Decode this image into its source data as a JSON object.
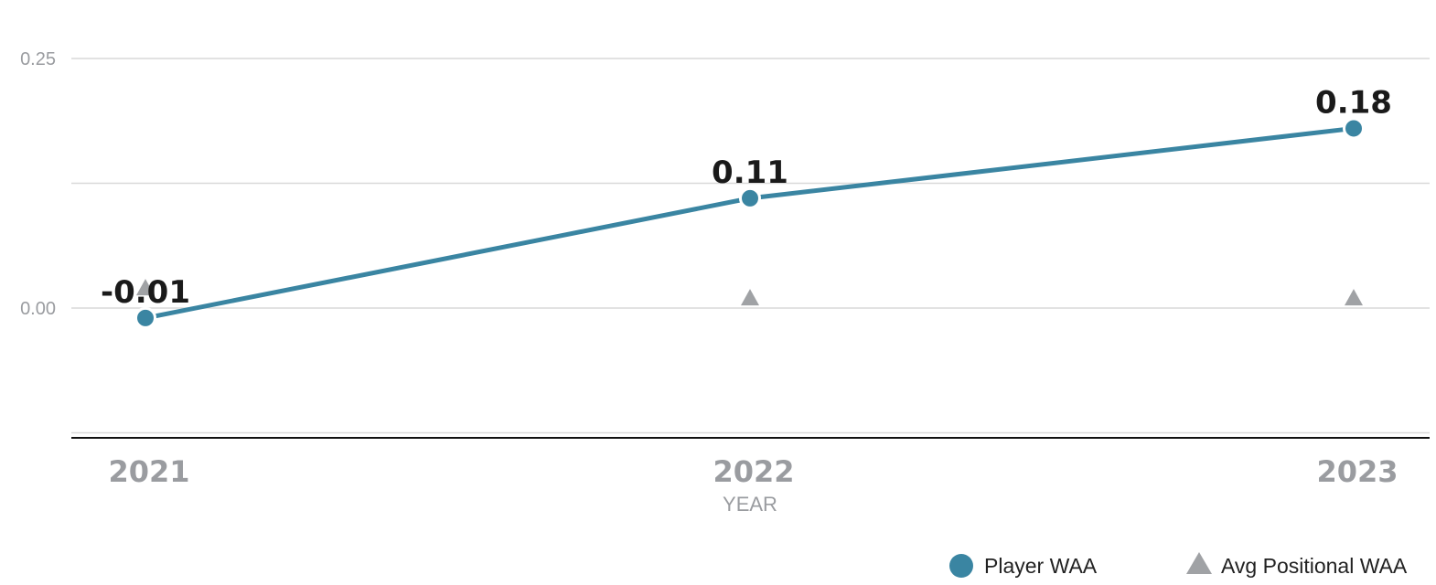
{
  "chart_data": {
    "type": "line",
    "x": [
      "2021",
      "2022",
      "2023"
    ],
    "xlabel": "YEAR",
    "ylabel": "",
    "yticks": [
      "0.25",
      "0.00"
    ],
    "ylim": [
      -0.125,
      0.25
    ],
    "grid": true,
    "legend_position": "bottom-right",
    "series": [
      {
        "name": "Player WAA",
        "values": [
          -0.01,
          0.11,
          0.18
        ],
        "labels": [
          "-0.01",
          "0.11",
          "0.18"
        ],
        "marker": "circle",
        "color": "#3a85a2"
      },
      {
        "name": "Avg Positional WAA",
        "values": [
          0.02,
          0.01,
          0.01
        ],
        "marker": "triangle",
        "color": "#a0a2a5"
      }
    ]
  }
}
